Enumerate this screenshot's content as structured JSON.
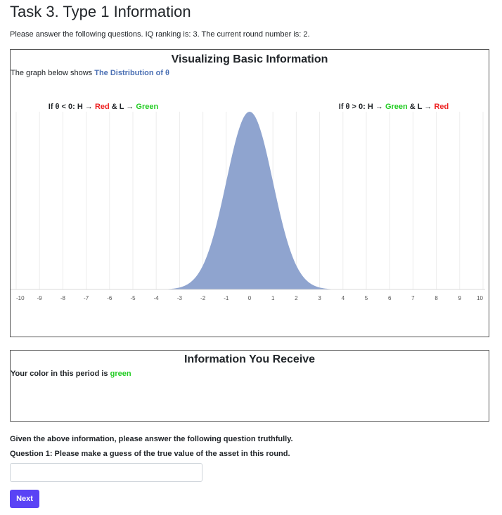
{
  "page": {
    "title": "Task 3. Type 1 Information",
    "intro_text": "Please answer the following questions. IQ ranking is: 3. The current round number is: 2."
  },
  "viz_panel": {
    "title": "Visualizing Basic Information",
    "desc_prefix": "The graph below shows ",
    "desc_highlight": "The Distribution of θ",
    "rule_left": {
      "prefix": "If θ < 0: H → ",
      "first_color": "Red",
      "middle": " & L → ",
      "second_color": "Green"
    },
    "rule_right": {
      "prefix": "If θ > 0: H → ",
      "first_color": "Green",
      "middle": " & L → ",
      "second_color": "Red"
    }
  },
  "chart_data": {
    "type": "area",
    "title": "",
    "xlabel": "",
    "ylabel": "",
    "xlim": [
      -10,
      10
    ],
    "x_ticks": [
      "-10",
      "-9",
      "-8",
      "-7",
      "-6",
      "-5",
      "-4",
      "-3",
      "-2",
      "-1",
      "0",
      "1",
      "2",
      "3",
      "4",
      "5",
      "6",
      "7",
      "8",
      "9",
      "10"
    ],
    "series": [
      {
        "distribution": "normal",
        "mean": 0,
        "std": 1,
        "fill_color": "#8fa4cf",
        "x": [
          -10,
          -4,
          -3,
          -2.5,
          -2,
          -1.5,
          -1,
          -0.5,
          0,
          0.5,
          1,
          1.5,
          2,
          2.5,
          3,
          4,
          10
        ],
        "y": [
          0,
          0.0001,
          0.0044,
          0.0175,
          0.054,
          0.1295,
          0.242,
          0.3521,
          0.3989,
          0.3521,
          0.242,
          0.1295,
          0.054,
          0.0175,
          0.0044,
          0.0001,
          0
        ]
      }
    ],
    "grid": true
  },
  "info_panel": {
    "title": "Information You Receive",
    "color_prefix": "Your color in this period is ",
    "color_value": "green"
  },
  "question": {
    "intro": "Given the above information, please answer the following question truthfully.",
    "q1": "Question 1: Please make a guess of the true value of the asset in this round.",
    "answer_value": "",
    "answer_placeholder": ""
  },
  "buttons": {
    "next_label": "Next"
  },
  "colors": {
    "accent_button": "#5a43f5",
    "green_text": "#22cc22",
    "red_text": "#ee2222",
    "highlight_blue": "#4a6fb3",
    "curve_fill": "#8fa4cf"
  }
}
